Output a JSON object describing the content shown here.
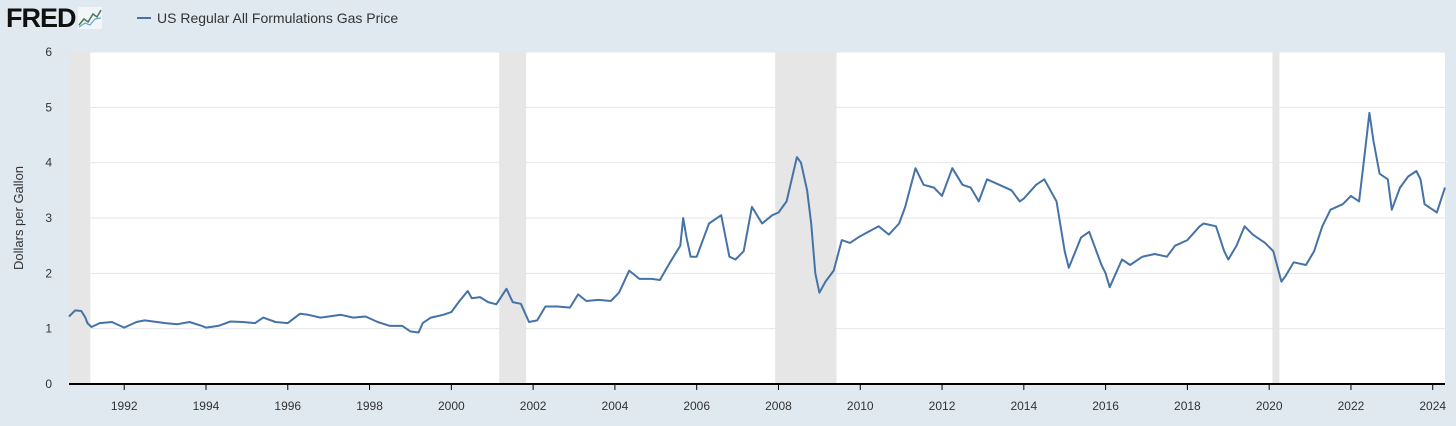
{
  "header": {
    "logo_text": "FRED",
    "logo_mark": "chart-line-icon",
    "legend_label": "US Regular All Formulations Gas Price",
    "series_color": "#4572a7"
  },
  "chart_data": {
    "type": "line",
    "title": "",
    "xlabel": "",
    "ylabel": "Dollars per Gallon",
    "xlim": [
      1990.65,
      2024.3
    ],
    "ylim": [
      0,
      6
    ],
    "y_ticks": [
      0,
      1,
      2,
      3,
      4,
      5,
      6
    ],
    "x_ticks": [
      1992,
      1994,
      1996,
      1998,
      2000,
      2002,
      2004,
      2006,
      2008,
      2010,
      2012,
      2014,
      2016,
      2018,
      2020,
      2022,
      2024
    ],
    "grid": true,
    "legend": "top-left",
    "recessions": [
      [
        1990.65,
        1991.17
      ],
      [
        2001.17,
        2001.83
      ],
      [
        2007.92,
        2009.42
      ],
      [
        2020.08,
        2020.25
      ]
    ],
    "series": [
      {
        "name": "US Regular All Formulations Gas Price",
        "color": "#4572a7",
        "x": [
          1990.65,
          1990.8,
          1990.95,
          1991.05,
          1991.1,
          1991.2,
          1991.4,
          1991.7,
          1992.0,
          1992.3,
          1992.5,
          1992.8,
          1993.0,
          1993.3,
          1993.6,
          1993.9,
          1994.0,
          1994.3,
          1994.6,
          1994.9,
          1995.2,
          1995.4,
          1995.7,
          1996.0,
          1996.3,
          1996.5,
          1996.8,
          1997.0,
          1997.3,
          1997.6,
          1997.9,
          1998.2,
          1998.5,
          1998.8,
          1999.0,
          1999.2,
          1999.3,
          1999.5,
          1999.8,
          2000.0,
          2000.2,
          2000.4,
          2000.5,
          2000.7,
          2000.9,
          2001.1,
          2001.35,
          2001.5,
          2001.7,
          2001.9,
          2002.1,
          2002.3,
          2002.6,
          2002.9,
          2003.1,
          2003.3,
          2003.6,
          2003.9,
          2004.1,
          2004.35,
          2004.6,
          2004.9,
          2005.1,
          2005.35,
          2005.6,
          2005.67,
          2005.75,
          2005.85,
          2006.0,
          2006.3,
          2006.6,
          2006.8,
          2006.95,
          2007.15,
          2007.35,
          2007.6,
          2007.85,
          2008.0,
          2008.2,
          2008.45,
          2008.55,
          2008.7,
          2008.8,
          2008.9,
          2009.0,
          2009.15,
          2009.35,
          2009.55,
          2009.75,
          2009.95,
          2010.2,
          2010.45,
          2010.7,
          2010.95,
          2011.1,
          2011.35,
          2011.55,
          2011.8,
          2012.0,
          2012.25,
          2012.5,
          2012.7,
          2012.9,
          2013.1,
          2013.4,
          2013.7,
          2013.9,
          2014.0,
          2014.3,
          2014.5,
          2014.8,
          2015.0,
          2015.1,
          2015.4,
          2015.6,
          2015.9,
          2016.0,
          2016.1,
          2016.4,
          2016.6,
          2016.9,
          2017.2,
          2017.5,
          2017.7,
          2018.0,
          2018.3,
          2018.4,
          2018.7,
          2018.9,
          2019.0,
          2019.2,
          2019.4,
          2019.6,
          2019.9,
          2020.1,
          2020.3,
          2020.4,
          2020.6,
          2020.9,
          2021.1,
          2021.3,
          2021.5,
          2021.8,
          2022.0,
          2022.2,
          2022.35,
          2022.45,
          2022.55,
          2022.7,
          2022.9,
          2023.0,
          2023.2,
          2023.4,
          2023.6,
          2023.7,
          2023.8,
          2024.0,
          2024.1,
          2024.3
        ],
        "y": [
          1.22,
          1.33,
          1.32,
          1.2,
          1.1,
          1.03,
          1.1,
          1.12,
          1.02,
          1.12,
          1.15,
          1.12,
          1.1,
          1.08,
          1.12,
          1.05,
          1.02,
          1.05,
          1.13,
          1.12,
          1.1,
          1.2,
          1.12,
          1.1,
          1.27,
          1.25,
          1.2,
          1.22,
          1.25,
          1.2,
          1.22,
          1.12,
          1.05,
          1.05,
          0.95,
          0.93,
          1.1,
          1.2,
          1.25,
          1.3,
          1.5,
          1.68,
          1.55,
          1.57,
          1.48,
          1.44,
          1.72,
          1.48,
          1.45,
          1.12,
          1.15,
          1.4,
          1.4,
          1.38,
          1.62,
          1.5,
          1.52,
          1.5,
          1.65,
          2.05,
          1.9,
          1.9,
          1.88,
          2.2,
          2.5,
          3.0,
          2.65,
          2.3,
          2.3,
          2.9,
          3.05,
          2.3,
          2.25,
          2.4,
          3.2,
          2.9,
          3.05,
          3.1,
          3.3,
          4.1,
          4.0,
          3.5,
          2.9,
          2.0,
          1.65,
          1.85,
          2.05,
          2.6,
          2.55,
          2.65,
          2.75,
          2.85,
          2.7,
          2.9,
          3.2,
          3.9,
          3.6,
          3.55,
          3.4,
          3.9,
          3.6,
          3.55,
          3.3,
          3.7,
          3.6,
          3.5,
          3.3,
          3.35,
          3.6,
          3.7,
          3.3,
          2.4,
          2.1,
          2.65,
          2.75,
          2.15,
          2.0,
          1.75,
          2.25,
          2.15,
          2.3,
          2.35,
          2.3,
          2.5,
          2.6,
          2.85,
          2.9,
          2.85,
          2.4,
          2.25,
          2.5,
          2.85,
          2.7,
          2.55,
          2.4,
          1.85,
          1.95,
          2.2,
          2.15,
          2.4,
          2.85,
          3.15,
          3.25,
          3.4,
          3.3,
          4.25,
          4.9,
          4.4,
          3.8,
          3.7,
          3.15,
          3.55,
          3.75,
          3.85,
          3.7,
          3.25,
          3.15,
          3.1,
          3.55
        ]
      }
    ]
  }
}
